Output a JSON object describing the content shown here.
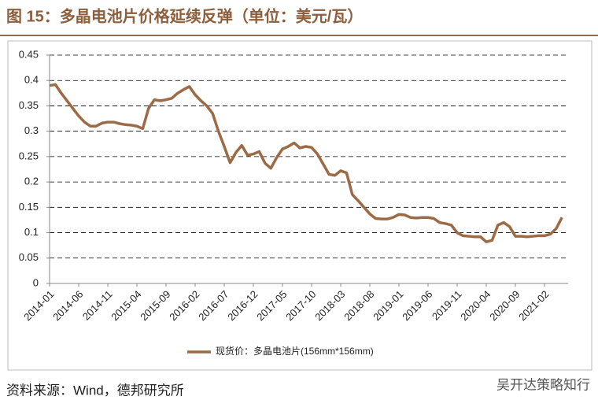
{
  "chart_data": {
    "type": "line",
    "title": "图 15：多晶电池片价格延续反弹（单位：美元/瓦）",
    "source": "资料来源：Wind，德邦研究所",
    "watermark": "吴开达策略知行",
    "categories": [
      "2014-01",
      null,
      null,
      null,
      null,
      "2014-06",
      null,
      null,
      null,
      null,
      "2014-11",
      null,
      null,
      null,
      null,
      "2015-04",
      null,
      null,
      null,
      null,
      "2015-09",
      null,
      null,
      null,
      null,
      "2016-02",
      null,
      null,
      null,
      null,
      "2016-07",
      null,
      null,
      null,
      null,
      "2016-12",
      null,
      null,
      null,
      null,
      "2017-05",
      null,
      null,
      null,
      null,
      "2017-10",
      null,
      null,
      null,
      null,
      "2018-03",
      null,
      null,
      null,
      null,
      "2018-08",
      null,
      null,
      null,
      null,
      "2019-01",
      null,
      null,
      null,
      null,
      "2019-06",
      null,
      null,
      null,
      null,
      "2019-11",
      null,
      null,
      null,
      null,
      "2020-04",
      null,
      null,
      null,
      null,
      "2020-09",
      null,
      null,
      null,
      null,
      "2021-02",
      null,
      null,
      null
    ],
    "series": [
      {
        "name": "现货价：多晶电池片(156mm*156mm)",
        "color": "#9c6a45",
        "values": [
          0.39,
          0.392,
          0.375,
          0.36,
          0.345,
          0.33,
          0.318,
          0.31,
          0.31,
          0.316,
          0.318,
          0.318,
          0.315,
          0.313,
          0.312,
          0.31,
          0.305,
          0.345,
          0.362,
          0.36,
          0.362,
          0.365,
          0.375,
          0.382,
          0.388,
          0.372,
          0.36,
          0.35,
          0.335,
          0.3,
          0.27,
          0.238,
          0.258,
          0.272,
          0.253,
          0.255,
          0.26,
          0.237,
          0.227,
          0.248,
          0.265,
          0.27,
          0.277,
          0.267,
          0.27,
          0.268,
          0.255,
          0.235,
          0.215,
          0.213,
          0.222,
          0.218,
          0.175,
          0.163,
          0.15,
          0.137,
          0.128,
          0.127,
          0.127,
          0.13,
          0.136,
          0.135,
          0.13,
          0.129,
          0.13,
          0.13,
          0.128,
          0.12,
          0.118,
          0.115,
          0.1,
          0.094,
          0.093,
          0.092,
          0.092,
          0.082,
          0.085,
          0.115,
          0.12,
          0.112,
          0.093,
          0.093,
          0.092,
          0.093,
          0.094,
          0.094,
          0.097,
          0.108,
          0.13
        ]
      }
    ],
    "ylim": [
      0,
      0.45
    ],
    "yticks": [
      0,
      0.05,
      0.1,
      0.15,
      0.2,
      0.25,
      0.3,
      0.35,
      0.4,
      0.45
    ],
    "grid": true,
    "legend": "bottom"
  }
}
